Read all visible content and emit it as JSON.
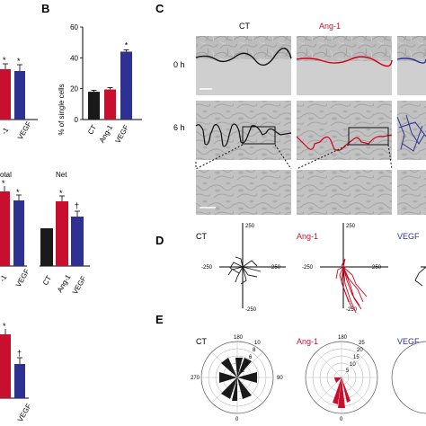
{
  "panels": {
    "a": "",
    "b": "B",
    "c": "C",
    "d": "D",
    "e": "E"
  },
  "colors": {
    "ct": "#1a1a1a",
    "ang1": "#c8102e",
    "vegf": "#2e3192",
    "micro": "#b7b7b7",
    "star": "#000000"
  },
  "conditions": {
    "ct": "CT",
    "ang1": "Ang-1",
    "vegf": "VEGF"
  },
  "panel_a": {
    "top_xlabels": [
      "-1",
      "VEGF"
    ],
    "mid_titles": [
      "otal",
      "Net"
    ],
    "mid_left_xlabels": [
      "-1",
      "VEGF"
    ],
    "mid_net_xlabels": [
      "CT",
      "Ang-1",
      "VEGF"
    ],
    "bottom_xlabels": [
      "VEGF"
    ],
    "markers": {
      "star": "*",
      "dagger": "†"
    }
  },
  "panel_c": {
    "time_labels": [
      "0 h",
      "6 h"
    ]
  },
  "panel_d": {
    "axis_labels": {
      "top": "250",
      "bottom": "-250",
      "left": "-250",
      "right": "250"
    }
  },
  "panel_e": {
    "angle_labels": {
      "top": "180",
      "right": "90",
      "bottom": "0",
      "left": "270"
    },
    "ct_radial_ticks": [
      "10",
      "8",
      "6",
      "4",
      "2"
    ],
    "ang1_radial_ticks": [
      "25",
      "20",
      "15",
      "10",
      "5"
    ]
  },
  "chart_data": [
    {
      "type": "bar",
      "panel": "B",
      "categories": [
        "CT",
        "Ang-1",
        "VEGF"
      ],
      "values": [
        18,
        19.5,
        44
      ],
      "errors": [
        1,
        1.2,
        1.2
      ],
      "ylabel": "% of single cells",
      "ylim": [
        0,
        60
      ],
      "yticks": [
        "0",
        "20",
        "40",
        "60"
      ],
      "annotations": [
        "",
        "",
        "*"
      ]
    }
  ]
}
